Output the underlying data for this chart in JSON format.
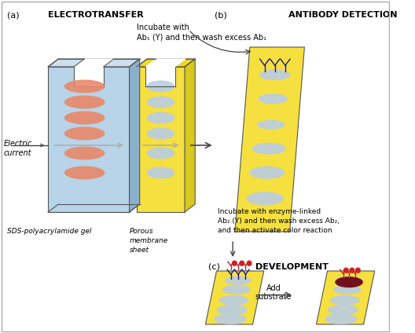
{
  "bg_color": "#ffffff",
  "border_color": "#aaaaaa",
  "gel_face_color": "#b8d4e8",
  "gel_side_color": "#8ab0cc",
  "gel_top_color": "#cce0f0",
  "mem_color": "#f5e040",
  "band_gel_color": "#e8886a",
  "band_mem_color": "#b8cce4",
  "ab1_color": "#1a1a7a",
  "ab2_red_color": "#cc2222",
  "ab2_blue_color": "#1a1a7a",
  "spot_color": "#6a0010",
  "label_a": "(a)",
  "label_b": "(b)",
  "label_c": "(c)",
  "title_a": "ELECTROTRANSFER",
  "title_b": "ANTIBODY DETECTION",
  "title_c": "DEVELOPMENT",
  "text_electric": "Electric\ncurrent",
  "text_sds": "SDS-polyacrylamide gel",
  "text_porous": "Porous\nmembrane\nsheet",
  "text_incubate1_l1": "Incubate with",
  "text_incubate1_l2": "Ab₁ (Υ) and then wash excess Ab₁",
  "text_incubate2": "Incubate with enzyme-linked\nAb₂ (Υ) and then wash excess Ab₂,\nand then activate color reaction",
  "text_add_substrate": "Add\nsubstrate",
  "arrow_color": "#444444",
  "electric_arrow_color": "#cc3333"
}
